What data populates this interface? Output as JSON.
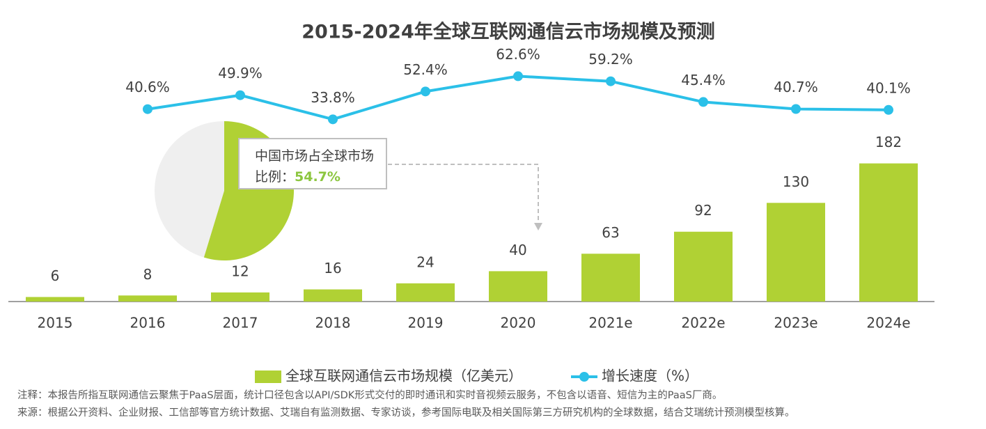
{
  "chart_data": [
    {
      "type": "bar-line",
      "title": "2015-2024年全球互联网通信云市场规模及预测",
      "categories": [
        "2015",
        "2016",
        "2017",
        "2018",
        "2019",
        "2020",
        "2021e",
        "2022e",
        "2023e",
        "2024e"
      ],
      "series": [
        {
          "name": "全球互联网通信云市场规模（亿美元）",
          "color": "#b0d134",
          "values": [
            6,
            8,
            12,
            16,
            24,
            40,
            63,
            92,
            130,
            182
          ]
        },
        {
          "name": "增长速度（%）",
          "color": "#2bc0e8",
          "axis": "y2",
          "values": [
            null,
            40.6,
            49.9,
            33.8,
            52.4,
            62.6,
            59.2,
            45.4,
            40.7,
            40.1
          ],
          "value_labels": [
            null,
            "40.6%",
            "49.9%",
            "33.8%",
            "52.4%",
            "62.6%",
            "59.2%",
            "45.4%",
            "40.7%",
            "40.1%"
          ]
        }
      ],
      "ylim": [
        0,
        200
      ],
      "y2lim": [
        0,
        70
      ]
    },
    {
      "type": "pie",
      "annotation": "中国市场占全球市场比例：",
      "values": [
        54.7
      ],
      "value_labels": [
        "54.7%"
      ],
      "color": "#b0d134"
    }
  ],
  "notes": [
    "注释：本报告所指互联网通信云聚焦于PaaS层面，统计口径包含以API/SDK形式交付的即时通讯和实时音视频云服务，不包含以语音、短信为主的PaaS厂商。",
    "来源：根据公开资料、企业财报、工信部等官方统计数据、艾瑞自有监测数据、专家访谈，参考国际电联及相关国际第三方研究机构的全球数据，结合艾瑞统计预测模型核算。"
  ]
}
